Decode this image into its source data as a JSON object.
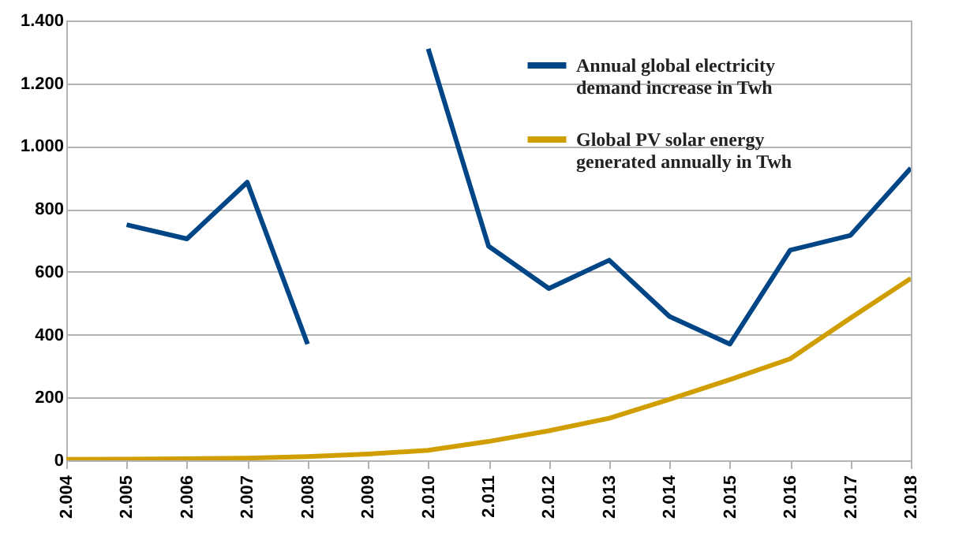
{
  "chart_data": {
    "type": "line",
    "categories": [
      "2.004",
      "2.005",
      "2.006",
      "2.007",
      "2.008",
      "2.009",
      "2.010",
      "2.011",
      "2.012",
      "2.013",
      "2.014",
      "2.015",
      "2.016",
      "2.017",
      "2.018"
    ],
    "series": [
      {
        "name": "Annual global electricity demand increase in Twh",
        "color": "#004586",
        "values": [
          null,
          750,
          705,
          885,
          370,
          null,
          1310,
          682,
          547,
          637,
          458,
          370,
          669,
          716,
          930
        ]
      },
      {
        "name": "Global PV solar energy generated annually in Twh",
        "color": "#d09e00",
        "values": [
          3,
          4,
          5,
          7,
          12,
          20,
          32,
          60,
          94,
          134,
          194,
          257,
          323,
          453,
          579
        ]
      }
    ],
    "ylim": [
      0,
      1400
    ],
    "yticks": [
      {
        "value": 0,
        "label": "0"
      },
      {
        "value": 200,
        "label": "200"
      },
      {
        "value": 400,
        "label": "400"
      },
      {
        "value": 600,
        "label": "600"
      },
      {
        "value": 800,
        "label": "800"
      },
      {
        "value": 1000,
        "label": "1.000"
      },
      {
        "value": 1200,
        "label": "1.200"
      },
      {
        "value": 1400,
        "label": "1.400"
      }
    ],
    "grid": "y",
    "legend": "top right",
    "marker": "none",
    "line_style": "solid"
  }
}
